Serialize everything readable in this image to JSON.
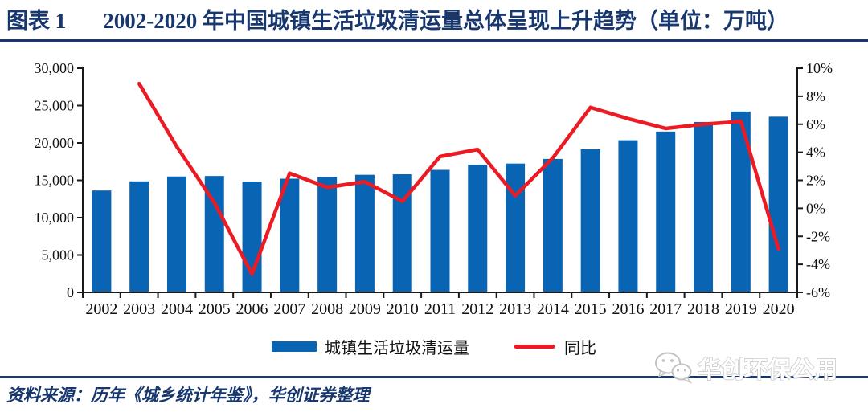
{
  "header": {
    "figure_label": "图表 1",
    "title": "2002-2020 年中国城镇生活垃圾清运量总体呈现上升趋势（单位：万吨）"
  },
  "chart_data": {
    "type": "bar",
    "title": "2002-2020 年中国城镇生活垃圾清运量总体呈现上升趋势",
    "unit": "万吨",
    "categories": [
      "2002",
      "2003",
      "2004",
      "2005",
      "2006",
      "2007",
      "2008",
      "2009",
      "2010",
      "2011",
      "2012",
      "2013",
      "2014",
      "2015",
      "2016",
      "2017",
      "2018",
      "2019",
      "2020"
    ],
    "series": [
      {
        "name": "城镇生活垃圾清运量",
        "type": "bar",
        "axis": "left",
        "values": [
          13638,
          14857,
          15509,
          15577,
          14841,
          15215,
          15438,
          15734,
          15805,
          16395,
          17081,
          17239,
          17860,
          19142,
          20362,
          21521,
          22802,
          24206,
          23512
        ]
      },
      {
        "name": "同比",
        "type": "line",
        "axis": "right",
        "values": [
          null,
          8.9,
          4.4,
          0.4,
          -4.7,
          2.5,
          1.5,
          1.9,
          0.5,
          3.7,
          4.2,
          0.9,
          3.6,
          7.2,
          6.4,
          5.7,
          6.0,
          6.2,
          -2.9
        ]
      }
    ],
    "left_axis": {
      "min": 0,
      "max": 30000,
      "step": 5000,
      "tick_labels": [
        "0",
        "5,000",
        "10,000",
        "15,000",
        "20,000",
        "25,000",
        "30,000"
      ]
    },
    "right_axis": {
      "min": -6,
      "max": 10,
      "step": 2,
      "tick_labels": [
        "-6%",
        "-4%",
        "-2%",
        "0%",
        "2%",
        "4%",
        "6%",
        "8%",
        "10%"
      ]
    },
    "grid": false,
    "legend_position": "bottom"
  },
  "legend": {
    "bar_label": "城镇生活垃圾清运量",
    "line_label": "同比"
  },
  "footer": {
    "source": "资料来源：历年《城乡统计年鉴》，华创证券整理"
  },
  "watermark": {
    "icon": "wechat-icon",
    "text": "华创环保公用"
  },
  "colors": {
    "navy": "#17376E",
    "bar_blue": "#0A64B4",
    "line_red": "#EC1B23",
    "axis": "#1A1A1A",
    "watermark_stroke": "#C2C2C2"
  }
}
